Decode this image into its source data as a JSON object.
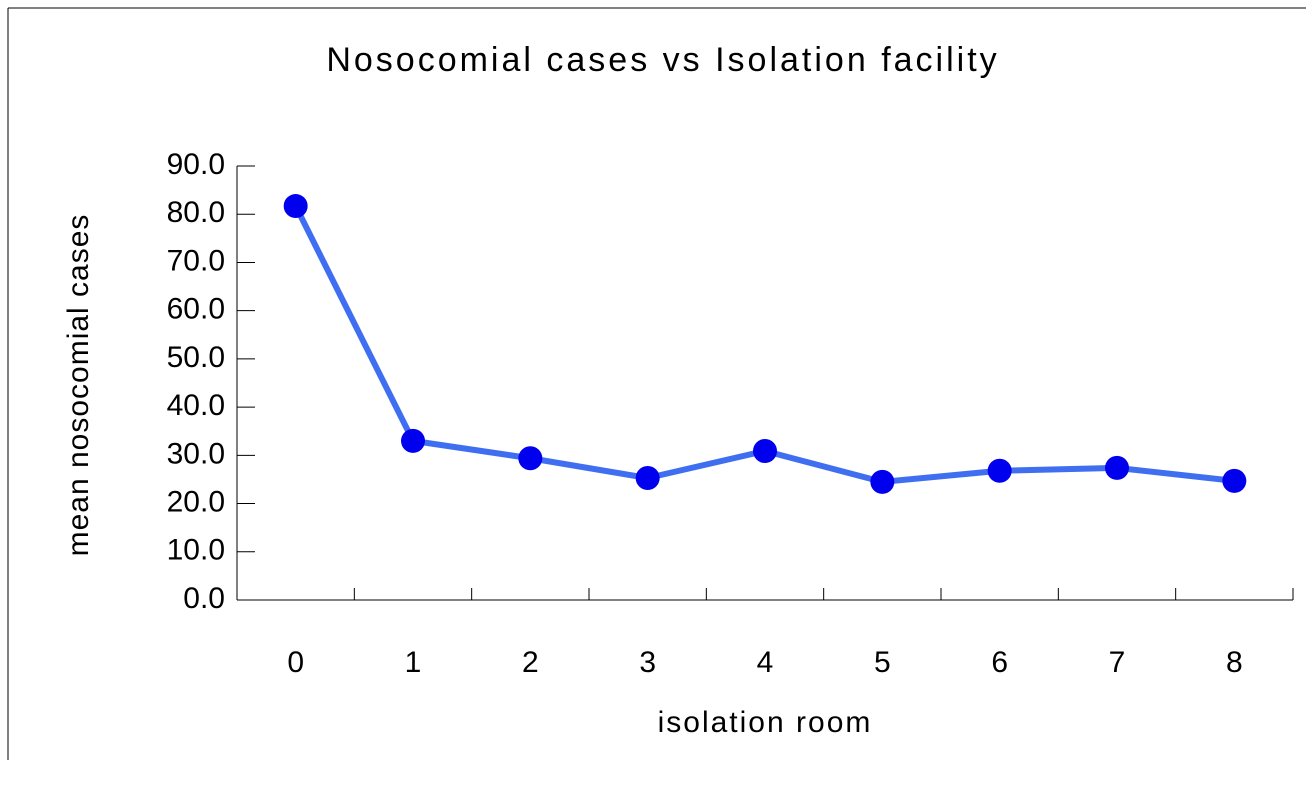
{
  "chart_data": {
    "type": "line",
    "title": "Nosocomial cases vs Isolation facility",
    "x_label": "isolation room",
    "y_label": "mean nosocomial cases",
    "categories": [
      "0",
      "1",
      "2",
      "3",
      "4",
      "5",
      "6",
      "7",
      "8"
    ],
    "series": [
      {
        "color": "#3f6ff0",
        "marker_color": "#0000ee",
        "values": [
          81.7,
          33.0,
          29.4,
          25.3,
          30.9,
          24.5,
          26.8,
          27.4,
          24.7
        ]
      }
    ],
    "ylim": [
      0,
      90
    ],
    "yticks": [
      {
        "value": 0,
        "label": "0.0"
      },
      {
        "value": 10,
        "label": "10.0"
      },
      {
        "value": 20,
        "label": "20.0"
      },
      {
        "value": 30,
        "label": "30.0"
      },
      {
        "value": 40,
        "label": "40.0"
      },
      {
        "value": 50,
        "label": "50.0"
      },
      {
        "value": 60,
        "label": "60.0"
      },
      {
        "value": 70,
        "label": "70.0"
      },
      {
        "value": 80,
        "label": "80.0"
      },
      {
        "value": 90,
        "label": "90.0"
      }
    ],
    "grid": false
  }
}
